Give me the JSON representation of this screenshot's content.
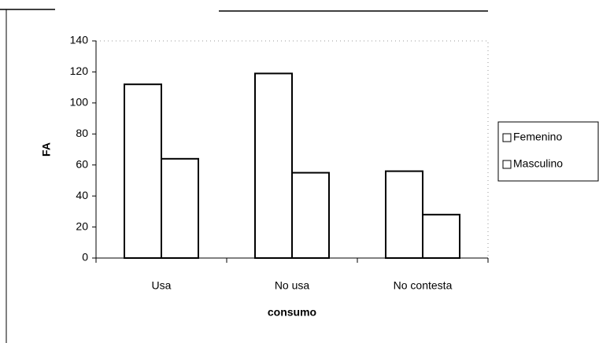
{
  "chart_data": {
    "type": "bar",
    "categories": [
      "Usa",
      "No usa",
      "No contesta"
    ],
    "series": [
      {
        "name": "Femenino",
        "color": "#ffffff",
        "values": [
          112,
          119,
          56
        ]
      },
      {
        "name": "Masculino",
        "color": "#ffffff",
        "values": [
          64,
          55,
          28
        ]
      }
    ],
    "xlabel": "consumo",
    "ylabel": "FA",
    "ylim": [
      0,
      140
    ],
    "yticks": [
      0,
      20,
      40,
      60,
      80,
      100,
      120,
      140
    ],
    "legend": "right"
  }
}
